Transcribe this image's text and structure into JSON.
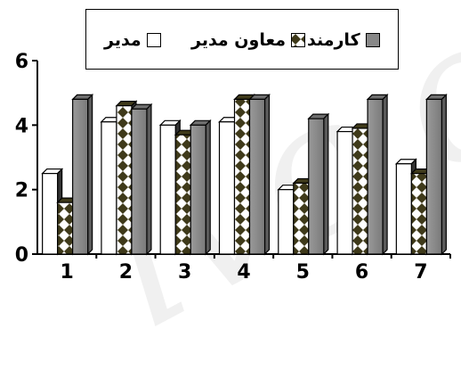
{
  "chart_data": {
    "type": "bar",
    "categories": [
      "1",
      "2",
      "3",
      "4",
      "5",
      "6",
      "7"
    ],
    "series": [
      {
        "name": "مدیر",
        "values": [
          2.5,
          4.1,
          4.0,
          4.1,
          2.0,
          3.8,
          2.8
        ],
        "pattern": "plain",
        "color": "#ffffff"
      },
      {
        "name": "معاون مدیر",
        "values": [
          1.6,
          4.6,
          3.7,
          4.8,
          2.2,
          3.9,
          2.5
        ],
        "pattern": "diamond",
        "color": "#3f3a1a"
      },
      {
        "name": "کارمند",
        "values": [
          4.8,
          4.5,
          4.0,
          4.8,
          4.2,
          4.8,
          4.8
        ],
        "pattern": "solid",
        "color": "#888888"
      }
    ],
    "ylim": [
      0,
      6
    ],
    "yticks": [
      "0",
      "2",
      "4",
      "6"
    ],
    "grid": false,
    "legend": "top-center",
    "title": "",
    "xlabel": "",
    "ylabel": ""
  },
  "legend_labels": {
    "manager": "مدیر",
    "deputy": "معاون مدیر",
    "employee": "کارمند"
  }
}
